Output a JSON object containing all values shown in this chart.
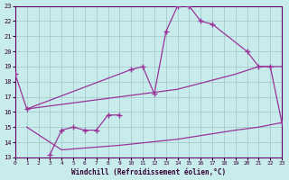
{
  "bg_color": "#c8ecec",
  "line_color": "#993399",
  "grid_color": "#99bbbb",
  "xlabel": "Windchill (Refroidissement éolien,°C)",
  "xlim": [
    0,
    23
  ],
  "ylim": [
    13,
    23
  ],
  "xticks": [
    0,
    1,
    2,
    3,
    4,
    5,
    6,
    7,
    8,
    9,
    10,
    11,
    12,
    13,
    14,
    15,
    16,
    17,
    18,
    19,
    20,
    21,
    22,
    23
  ],
  "yticks": [
    13,
    14,
    15,
    16,
    17,
    18,
    19,
    20,
    21,
    22,
    23
  ],
  "line1": {
    "x": [
      0,
      1,
      10,
      11,
      12,
      13,
      14,
      15,
      16,
      17,
      20,
      21,
      22,
      23
    ],
    "y": [
      18.5,
      16.2,
      18.8,
      19.0,
      17.2,
      21.3,
      23.0,
      23.0,
      22.0,
      21.8,
      20.0,
      19.0,
      19.0,
      15.3
    ]
  },
  "line2": {
    "x": [
      3,
      4,
      5,
      6,
      7,
      8,
      9
    ],
    "y": [
      13.2,
      14.8,
      15.0,
      14.8,
      14.8,
      15.8,
      15.8
    ]
  },
  "line3": {
    "x": [
      1,
      4,
      9,
      14,
      19,
      21,
      23
    ],
    "y": [
      16.2,
      16.5,
      17.0,
      17.5,
      18.5,
      19.0,
      19.0
    ]
  },
  "line4": {
    "x": [
      1,
      4,
      9,
      14,
      19,
      21,
      23
    ],
    "y": [
      15.0,
      13.5,
      13.8,
      14.2,
      14.8,
      15.0,
      15.3
    ]
  }
}
